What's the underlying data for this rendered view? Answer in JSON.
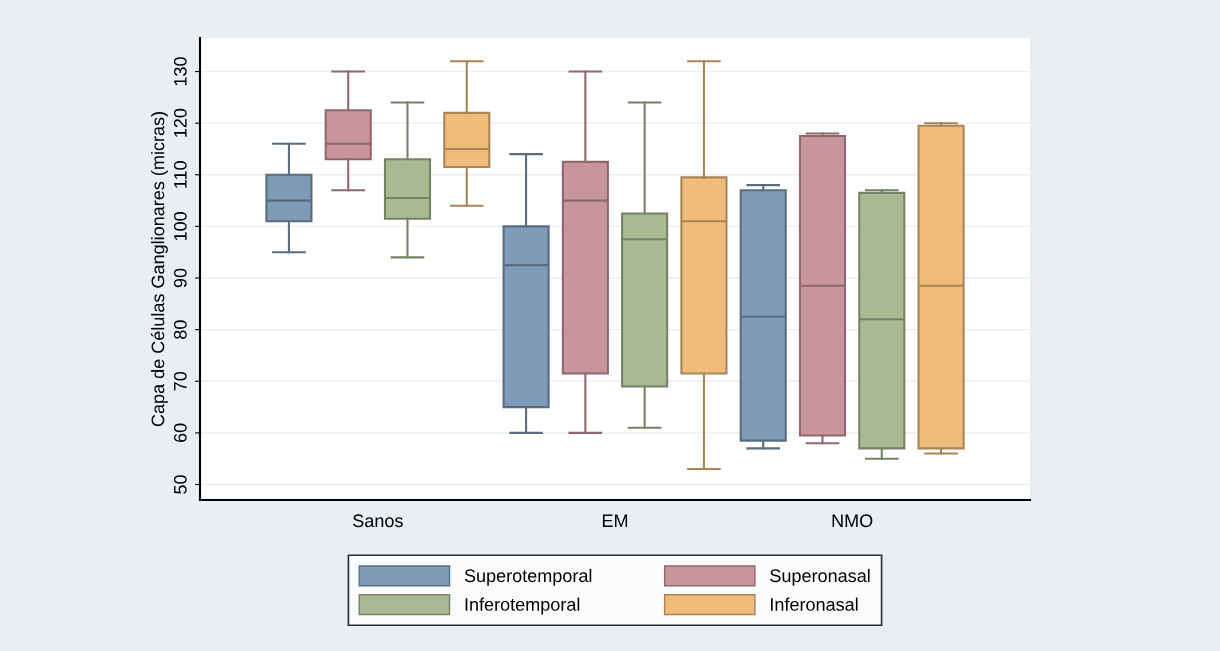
{
  "chart_data": {
    "type": "box",
    "ylabel": "Capa de Células Ganglionares (micras)",
    "categories": [
      "Sanos",
      "EM",
      "NMO"
    ],
    "ylim": [
      47,
      136.5
    ],
    "yticks": [
      50,
      60,
      70,
      80,
      90,
      100,
      110,
      120,
      130
    ],
    "grid": "y",
    "legend": "bottom",
    "series": [
      {
        "name": "Superotemporal",
        "color": "#7f9bb8",
        "boxes": [
          {
            "low": 95,
            "q1": 101,
            "median": 105,
            "q3": 110,
            "high": 116
          },
          {
            "low": 60,
            "q1": 65,
            "median": 92.5,
            "q3": 100,
            "high": 114
          },
          {
            "low": 57,
            "q1": 58.5,
            "median": 82.5,
            "q3": 107,
            "high": 108
          }
        ]
      },
      {
        "name": "Superonasal",
        "color": "#c9959c",
        "boxes": [
          {
            "low": 107,
            "q1": 113,
            "median": 116,
            "q3": 122.5,
            "high": 130
          },
          {
            "low": 60,
            "q1": 71.5,
            "median": 105,
            "q3": 112.5,
            "high": 130
          },
          {
            "low": 58,
            "q1": 59.5,
            "median": 88.5,
            "q3": 117.5,
            "high": 118
          }
        ]
      },
      {
        "name": "Inferotemporal",
        "color": "#a9ba92",
        "boxes": [
          {
            "low": 94,
            "q1": 101.5,
            "median": 105.5,
            "q3": 113,
            "high": 124
          },
          {
            "low": 61,
            "q1": 69,
            "median": 97.5,
            "q3": 102.5,
            "high": 124
          },
          {
            "low": 55,
            "q1": 57,
            "median": 82,
            "q3": 106.5,
            "high": 107
          }
        ]
      },
      {
        "name": "Inferonasal",
        "color": "#f0bc7c",
        "boxes": [
          {
            "low": 104,
            "q1": 111.5,
            "median": 115,
            "q3": 122,
            "high": 132
          },
          {
            "low": 53,
            "q1": 71.5,
            "median": 101,
            "q3": 109.5,
            "high": 132
          },
          {
            "low": 56,
            "q1": 57,
            "median": 88.5,
            "q3": 119.5,
            "high": 120
          }
        ]
      }
    ]
  }
}
